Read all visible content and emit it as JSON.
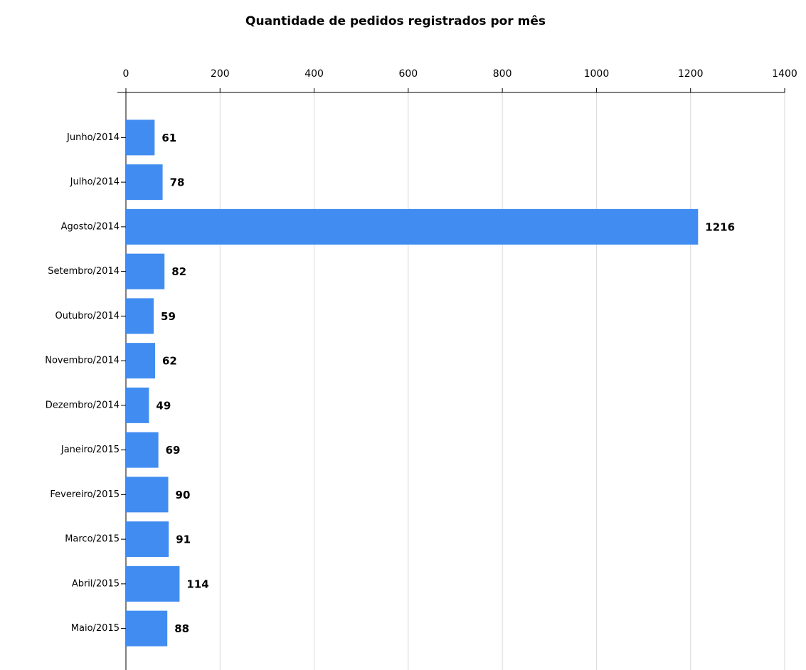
{
  "chart_data": {
    "type": "bar",
    "orientation": "horizontal",
    "title": "Quantidade de pedidos registrados por mês",
    "categories": [
      "Junho/2014",
      "Julho/2014",
      "Agosto/2014",
      "Setembro/2014",
      "Outubro/2014",
      "Novembro/2014",
      "Dezembro/2014",
      "Janeiro/2015",
      "Fevereiro/2015",
      "Marco/2015",
      "Abril/2015",
      "Maio/2015"
    ],
    "values": [
      61,
      78,
      1216,
      82,
      59,
      62,
      49,
      69,
      90,
      91,
      114,
      88
    ],
    "color": "#418cf0",
    "xlim": [
      0,
      1400
    ],
    "xticks": [
      0,
      200,
      400,
      600,
      800,
      1000,
      1200,
      1400
    ],
    "grid": true
  }
}
